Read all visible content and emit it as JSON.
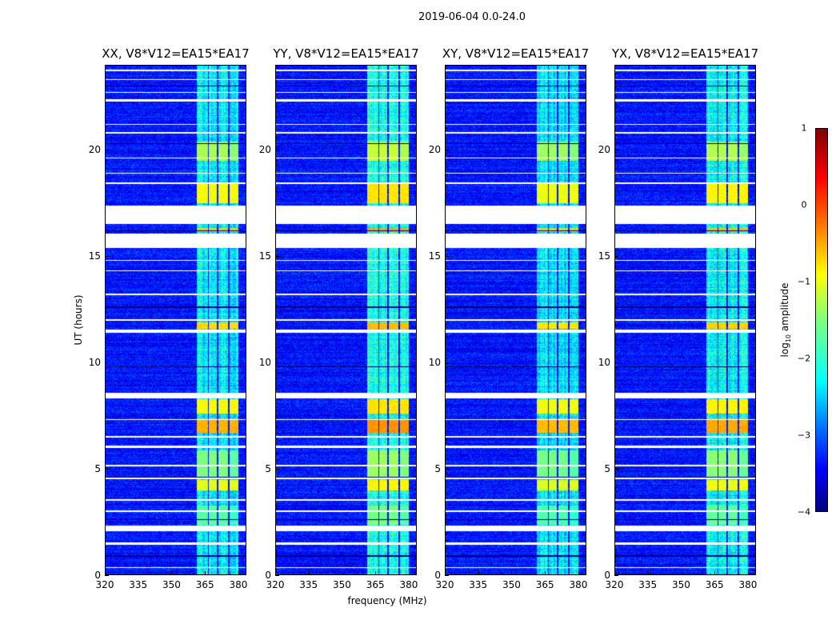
{
  "suptitle": "2019-06-04 0.0-24.0",
  "chart_data": {
    "type": "heatmap",
    "xlabel": "frequency (MHz)",
    "ylabel": "UT (hours)",
    "xlim": [
      320,
      383.6
    ],
    "ylim": [
      0,
      24
    ],
    "xticks": [
      "320",
      "335",
      "350",
      "365",
      "380"
    ],
    "xtick_values": [
      320,
      335,
      350,
      365,
      380
    ],
    "yticks": [
      "0",
      "5",
      "10",
      "15",
      "20"
    ],
    "ytick_values": [
      0,
      5,
      10,
      15,
      20
    ],
    "colormap": "jet",
    "colorbar": {
      "label_main": "log",
      "label_sub": "10",
      "label_rest": " amplitude",
      "range": [
        -4,
        1
      ],
      "ticks": [
        "1",
        "0",
        "−1",
        "−2",
        "−3",
        "−4"
      ],
      "tick_values": [
        1,
        0,
        -1,
        -2,
        -3,
        -4
      ]
    },
    "panels": [
      {
        "title": "XX, V8*V12=EA15*EA17",
        "strength": 1.0
      },
      {
        "title": "YY, V8*V12=EA15*EA17",
        "strength": 1.15
      },
      {
        "title": "XY, V8*V12=EA15*EA17",
        "strength": 0.95
      },
      {
        "title": "YX, V8*V12=EA15*EA17",
        "strength": 1.05
      }
    ],
    "background_log_amplitude": -3.3,
    "rfi_bands_mhz": [
      [
        361,
        366
      ],
      [
        366.5,
        370
      ],
      [
        371,
        375
      ],
      [
        376,
        380
      ]
    ],
    "flagged_hours": [
      [
        16.55,
        17.4
      ],
      [
        15.4,
        16.1
      ],
      [
        11.4,
        11.55
      ],
      [
        8.35,
        8.6
      ],
      [
        2.1,
        2.35
      ],
      [
        1.45,
        1.55
      ],
      [
        0.35,
        0.4
      ],
      [
        3.0,
        3.05
      ],
      [
        3.5,
        3.6
      ],
      [
        4.55,
        4.6
      ],
      [
        5.15,
        5.2
      ],
      [
        6.0,
        6.1
      ],
      [
        6.5,
        6.55
      ],
      [
        7.3,
        7.35
      ],
      [
        12.0,
        12.05
      ],
      [
        13.2,
        13.25
      ],
      [
        14.3,
        14.35
      ],
      [
        14.8,
        14.85
      ],
      [
        18.4,
        18.5
      ],
      [
        18.9,
        18.95
      ],
      [
        19.6,
        19.65
      ],
      [
        20.8,
        20.85
      ],
      [
        21.2,
        21.25
      ],
      [
        22.3,
        22.4
      ],
      [
        22.7,
        22.75
      ],
      [
        23.3,
        23.35
      ],
      [
        23.7,
        23.8
      ]
    ],
    "dark_rows_hours": [
      [
        0.9,
        0.95
      ],
      [
        2.6,
        2.65
      ],
      [
        4.6,
        4.65
      ],
      [
        9.8,
        9.85
      ],
      [
        12.6,
        12.65
      ],
      [
        16.2,
        16.25
      ],
      [
        20.3,
        20.35
      ],
      [
        23.0,
        23.05
      ]
    ],
    "rfi_bursts": [
      {
        "hours": [
          17.5,
          18.4
        ],
        "level": -0.9
      },
      {
        "hours": [
          19.5,
          20.4
        ],
        "level": -1.3
      },
      {
        "hours": [
          16.15,
          16.35
        ],
        "level": -0.6
      },
      {
        "hours": [
          11.6,
          11.9
        ],
        "level": -0.7
      },
      {
        "hours": [
          7.6,
          8.3
        ],
        "level": -0.9
      },
      {
        "hours": [
          6.7,
          7.4
        ],
        "level": -0.5
      },
      {
        "hours": [
          4.0,
          4.5
        ],
        "level": -1.0
      },
      {
        "hours": [
          4.6,
          5.9
        ],
        "level": -1.5
      },
      {
        "hours": [
          2.5,
          3.3
        ],
        "level": -1.7
      },
      {
        "hours": [
          2.4,
          2.7
        ],
        "level": -1.6
      }
    ]
  }
}
